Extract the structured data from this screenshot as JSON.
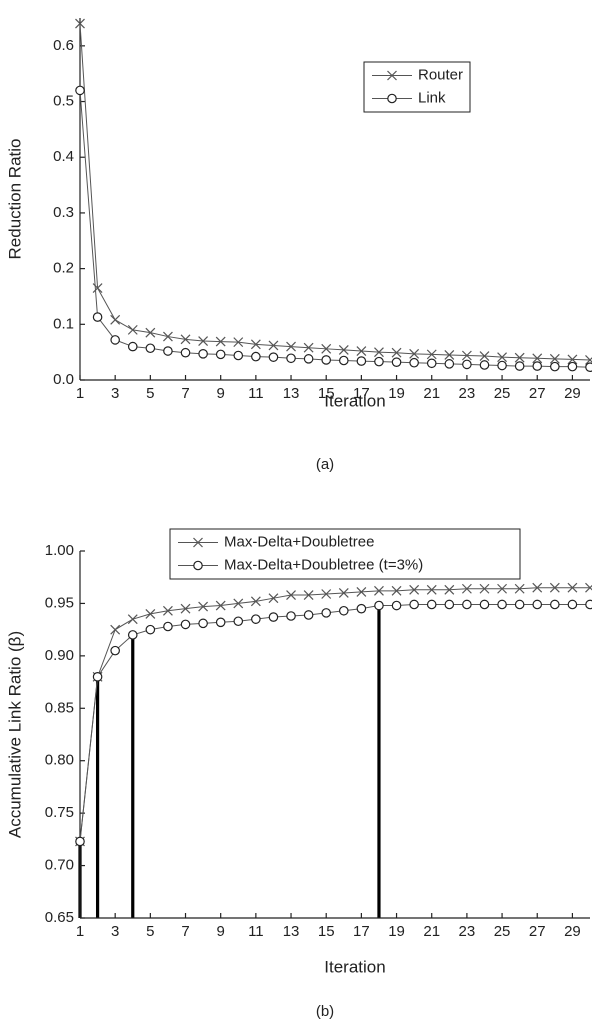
{
  "chart_data": [
    {
      "type": "line",
      "xlabel": "Iteration",
      "ylabel": "Reduction Ratio",
      "caption": "(a)",
      "x": [
        1,
        2,
        3,
        4,
        5,
        6,
        7,
        8,
        9,
        10,
        11,
        12,
        13,
        14,
        15,
        16,
        17,
        18,
        19,
        20,
        21,
        22,
        23,
        24,
        25,
        26,
        27,
        28,
        29,
        30
      ],
      "xlim": [
        1,
        30
      ],
      "xticks": [
        1,
        3,
        5,
        7,
        9,
        11,
        13,
        15,
        17,
        19,
        21,
        23,
        25,
        27,
        29
      ],
      "ylim": [
        0,
        0.65
      ],
      "yticks": [
        {
          "value": 0,
          "label": "0.0"
        },
        0.1,
        0.2,
        0.3,
        0.4,
        0.5,
        0.6
      ],
      "legend": "upper right",
      "series": [
        {
          "name": "Router",
          "color": "#555555",
          "marker": "x",
          "values": [
            0.64,
            0.165,
            0.108,
            0.09,
            0.085,
            0.078,
            0.073,
            0.07,
            0.069,
            0.068,
            0.064,
            0.062,
            0.06,
            0.058,
            0.056,
            0.054,
            0.052,
            0.05,
            0.049,
            0.047,
            0.046,
            0.045,
            0.044,
            0.043,
            0.041,
            0.04,
            0.039,
            0.038,
            0.037,
            0.036
          ]
        },
        {
          "name": "Link",
          "color": "#555555",
          "marker": "o",
          "values": [
            0.52,
            0.113,
            0.072,
            0.06,
            0.057,
            0.052,
            0.049,
            0.047,
            0.046,
            0.044,
            0.042,
            0.041,
            0.039,
            0.038,
            0.036,
            0.035,
            0.034,
            0.033,
            0.032,
            0.031,
            0.03,
            0.029,
            0.028,
            0.027,
            0.026,
            0.025,
            0.025,
            0.024,
            0.024,
            0.023
          ]
        }
      ]
    },
    {
      "type": "line",
      "xlabel": "Iteration",
      "ylabel": "Accumulative Link Ratio (β)",
      "caption": "(b)",
      "x": [
        1,
        2,
        3,
        4,
        5,
        6,
        7,
        8,
        9,
        10,
        11,
        12,
        13,
        14,
        15,
        16,
        17,
        18,
        19,
        20,
        21,
        22,
        23,
        24,
        25,
        26,
        27,
        28,
        29,
        30
      ],
      "xlim": [
        1,
        30
      ],
      "xticks": [
        1,
        3,
        5,
        7,
        9,
        11,
        13,
        15,
        17,
        19,
        21,
        23,
        25,
        27,
        29
      ],
      "ylim": [
        0.65,
        1
      ],
      "yticks": [
        0.65,
        {
          "value": 0.7,
          "label": "0.70"
        },
        0.75,
        {
          "value": 0.8,
          "label": "0.80"
        },
        0.85,
        {
          "value": 0.9,
          "label": "0.90"
        },
        0.95,
        {
          "value": 1,
          "label": "1.00"
        }
      ],
      "legend": "upper center",
      "series": [
        {
          "name": "Max-Delta+Doubletree",
          "color": "#555555",
          "marker": "x",
          "values": [
            0.723,
            0.88,
            0.925,
            0.935,
            0.94,
            0.943,
            0.945,
            0.947,
            0.948,
            0.95,
            0.952,
            0.955,
            0.958,
            0.958,
            0.959,
            0.96,
            0.961,
            0.962,
            0.962,
            0.963,
            0.963,
            0.963,
            0.964,
            0.964,
            0.964,
            0.964,
            0.965,
            0.965,
            0.965,
            0.965
          ]
        },
        {
          "name": "Max-Delta+Doubletree (t=3%)",
          "color": "#555555",
          "marker": "o",
          "values": [
            0.723,
            0.88,
            0.905,
            0.92,
            0.925,
            0.928,
            0.93,
            0.931,
            0.932,
            0.933,
            0.935,
            0.937,
            0.938,
            0.939,
            0.941,
            0.943,
            0.945,
            0.948,
            0.948,
            0.949,
            0.949,
            0.949,
            0.949,
            0.949,
            0.949,
            0.949,
            0.949,
            0.949,
            0.949,
            0.949
          ]
        }
      ],
      "stems": {
        "color": "#000000",
        "x": [
          1,
          2,
          4,
          18
        ],
        "values": [
          0.723,
          0.88,
          0.92,
          0.948
        ]
      }
    }
  ]
}
